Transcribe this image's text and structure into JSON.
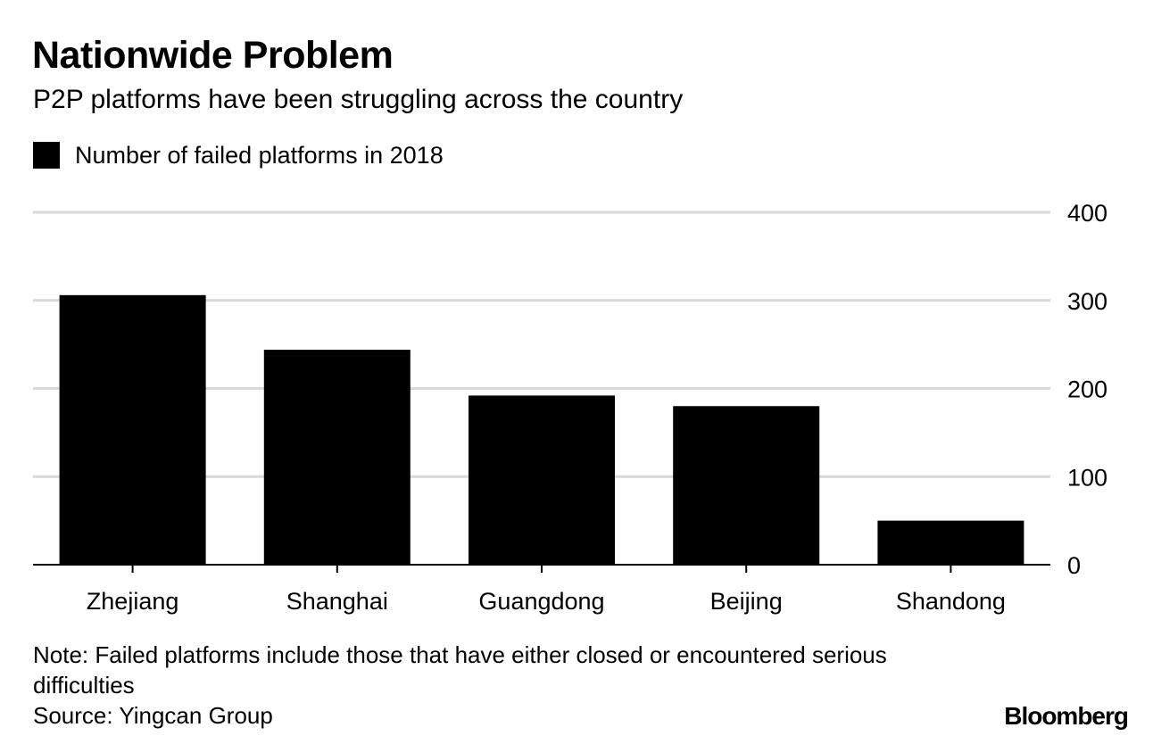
{
  "chart_data": {
    "type": "bar",
    "title": "Nationwide Problem",
    "subtitle": "P2P platforms have been struggling across the country",
    "series": [
      {
        "name": "Number of failed platforms in 2018",
        "values": [
          306,
          244,
          192,
          180,
          50
        ]
      }
    ],
    "categories": [
      "Zhejiang",
      "Shanghai",
      "Guangdong",
      "Beijing",
      "Shandong"
    ],
    "ylim": [
      0,
      400
    ],
    "yticks": [
      0,
      100,
      200,
      300,
      400
    ],
    "ytick_labels": [
      "0",
      "100",
      "200",
      "300",
      "400"
    ],
    "y_axis_side": "right",
    "grid": true,
    "legend_position": "top-left",
    "xlabel": "",
    "ylabel": ""
  },
  "colors": {
    "bar": "#000000",
    "grid": "#d9d9d9",
    "axis": "#000000",
    "background": "#ffffff"
  },
  "footer": {
    "note": "Note: Failed platforms include those that have either closed or encountered serious difficulties",
    "source": "Source: Yingcan Group"
  },
  "brand": "Bloomberg"
}
